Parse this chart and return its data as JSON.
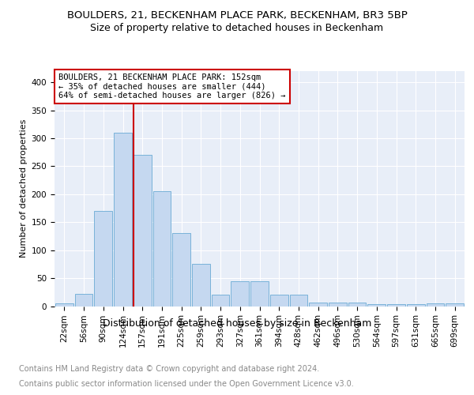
{
  "title1": "BOULDERS, 21, BECKENHAM PLACE PARK, BECKENHAM, BR3 5BP",
  "title2": "Size of property relative to detached houses in Beckenham",
  "xlabel": "Distribution of detached houses by size in Beckenham",
  "ylabel": "Number of detached properties",
  "footnote1": "Contains HM Land Registry data © Crown copyright and database right 2024.",
  "footnote2": "Contains public sector information licensed under the Open Government Licence v3.0.",
  "bar_labels": [
    "22sqm",
    "56sqm",
    "90sqm",
    "124sqm",
    "157sqm",
    "191sqm",
    "225sqm",
    "259sqm",
    "293sqm",
    "327sqm",
    "361sqm",
    "394sqm",
    "428sqm",
    "462sqm",
    "496sqm",
    "530sqm",
    "564sqm",
    "597sqm",
    "631sqm",
    "665sqm",
    "699sqm"
  ],
  "bar_values": [
    5,
    22,
    170,
    310,
    270,
    205,
    130,
    75,
    20,
    45,
    45,
    20,
    20,
    7,
    7,
    7,
    3,
    3,
    3,
    5,
    5
  ],
  "bar_color": "#c5d8f0",
  "bar_edge_color": "#6aaad4",
  "vline_color": "#cc0000",
  "annotation_text": "BOULDERS, 21 BECKENHAM PLACE PARK: 152sqm\n← 35% of detached houses are smaller (444)\n64% of semi-detached houses are larger (826) →",
  "annotation_box_color": "#ffffff",
  "annotation_box_edge": "#cc0000",
  "ylim": [
    0,
    420
  ],
  "yticks": [
    0,
    50,
    100,
    150,
    200,
    250,
    300,
    350,
    400
  ],
  "background_color": "#e8eef8",
  "grid_color": "#ffffff",
  "title1_fontsize": 9.5,
  "title2_fontsize": 9,
  "xlabel_fontsize": 9,
  "ylabel_fontsize": 8,
  "tick_fontsize": 7.5,
  "annotation_fontsize": 7.5,
  "footnote_fontsize": 7
}
